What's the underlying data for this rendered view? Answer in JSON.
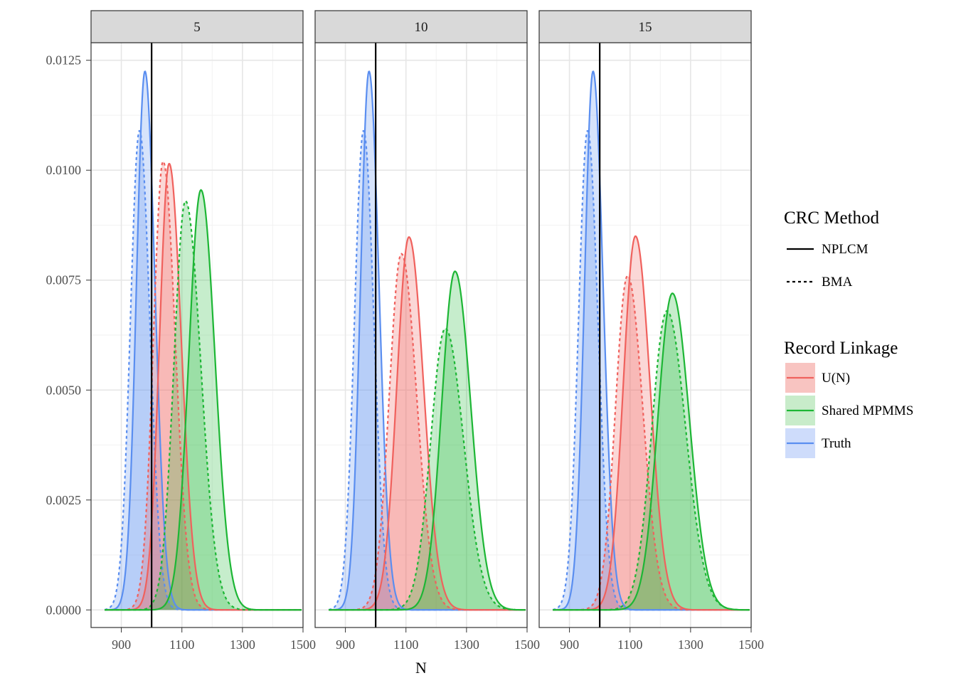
{
  "chart_data": {
    "type": "area",
    "xlabel": "N",
    "ylabel": "",
    "x_range": [
      800,
      1500
    ],
    "y_range": [
      -0.0004,
      0.0129
    ],
    "x_ticks": [
      900,
      1100,
      1300,
      1500
    ],
    "y_ticks": [
      0,
      0.0025,
      0.005,
      0.0075,
      0.01,
      0.0125
    ],
    "y_tick_labels": [
      "0.0000",
      "0.0025",
      "0.0050",
      "0.0075",
      "0.0100",
      "0.0125"
    ],
    "reference_line_x": 1000,
    "grid": true,
    "panels": [
      {
        "label": "5",
        "series": [
          {
            "linkage": "Truth",
            "method": "NPLCM",
            "peak_x": 978,
            "peak_y": 0.01225,
            "sd_left": 28,
            "sd_right": 33
          },
          {
            "linkage": "Truth",
            "method": "BMA",
            "peak_x": 960,
            "peak_y": 0.0109,
            "sd_left": 30,
            "sd_right": 34
          },
          {
            "linkage": "U(N)",
            "method": "NPLCM",
            "peak_x": 1058,
            "peak_y": 0.01015,
            "sd_left": 32,
            "sd_right": 40
          },
          {
            "linkage": "U(N)",
            "method": "BMA",
            "peak_x": 1038,
            "peak_y": 0.0102,
            "sd_left": 32,
            "sd_right": 40
          },
          {
            "linkage": "Shared MPMMS",
            "method": "NPLCM",
            "peak_x": 1163,
            "peak_y": 0.00955,
            "sd_left": 40,
            "sd_right": 46
          },
          {
            "linkage": "Shared MPMMS",
            "method": "BMA",
            "peak_x": 1112,
            "peak_y": 0.0093,
            "sd_left": 38,
            "sd_right": 50
          }
        ]
      },
      {
        "label": "10",
        "series": [
          {
            "linkage": "Truth",
            "method": "NPLCM",
            "peak_x": 978,
            "peak_y": 0.01225,
            "sd_left": 28,
            "sd_right": 33
          },
          {
            "linkage": "Truth",
            "method": "BMA",
            "peak_x": 960,
            "peak_y": 0.0109,
            "sd_left": 30,
            "sd_right": 34
          },
          {
            "linkage": "U(N)",
            "method": "NPLCM",
            "peak_x": 1110,
            "peak_y": 0.00848,
            "sd_left": 40,
            "sd_right": 48
          },
          {
            "linkage": "U(N)",
            "method": "BMA",
            "peak_x": 1085,
            "peak_y": 0.0081,
            "sd_left": 40,
            "sd_right": 50
          },
          {
            "linkage": "Shared MPMMS",
            "method": "NPLCM",
            "peak_x": 1262,
            "peak_y": 0.0077,
            "sd_left": 44,
            "sd_right": 52
          },
          {
            "linkage": "Shared MPMMS",
            "method": "BMA",
            "peak_x": 1230,
            "peak_y": 0.0064,
            "sd_left": 48,
            "sd_right": 60
          }
        ]
      },
      {
        "label": "15",
        "series": [
          {
            "linkage": "Truth",
            "method": "NPLCM",
            "peak_x": 978,
            "peak_y": 0.01225,
            "sd_left": 28,
            "sd_right": 33
          },
          {
            "linkage": "Truth",
            "method": "BMA",
            "peak_x": 960,
            "peak_y": 0.0109,
            "sd_left": 30,
            "sd_right": 34
          },
          {
            "linkage": "U(N)",
            "method": "NPLCM",
            "peak_x": 1118,
            "peak_y": 0.0085,
            "sd_left": 40,
            "sd_right": 48
          },
          {
            "linkage": "U(N)",
            "method": "BMA",
            "peak_x": 1092,
            "peak_y": 0.0076,
            "sd_left": 40,
            "sd_right": 50
          },
          {
            "linkage": "Shared MPMMS",
            "method": "NPLCM",
            "peak_x": 1240,
            "peak_y": 0.0072,
            "sd_left": 48,
            "sd_right": 56
          },
          {
            "linkage": "Shared MPMMS",
            "method": "BMA",
            "peak_x": 1222,
            "peak_y": 0.0068,
            "sd_left": 50,
            "sd_right": 62
          }
        ]
      }
    ],
    "legend": {
      "placement": "right",
      "method_title": "CRC Method",
      "methods": [
        {
          "label": "NPLCM",
          "linetype": "solid"
        },
        {
          "label": "BMA",
          "linetype": "dashed"
        }
      ],
      "linkage_title": "Record Linkage",
      "linkages": [
        {
          "label": "U(N)",
          "color": "#f0615d",
          "fill": "#f8c4c1"
        },
        {
          "label": "Shared MPMMS",
          "color": "#1db635",
          "fill": "#c8ecca"
        },
        {
          "label": "Truth",
          "color": "#5a8ef0",
          "fill": "#cedcfb"
        }
      ]
    }
  }
}
